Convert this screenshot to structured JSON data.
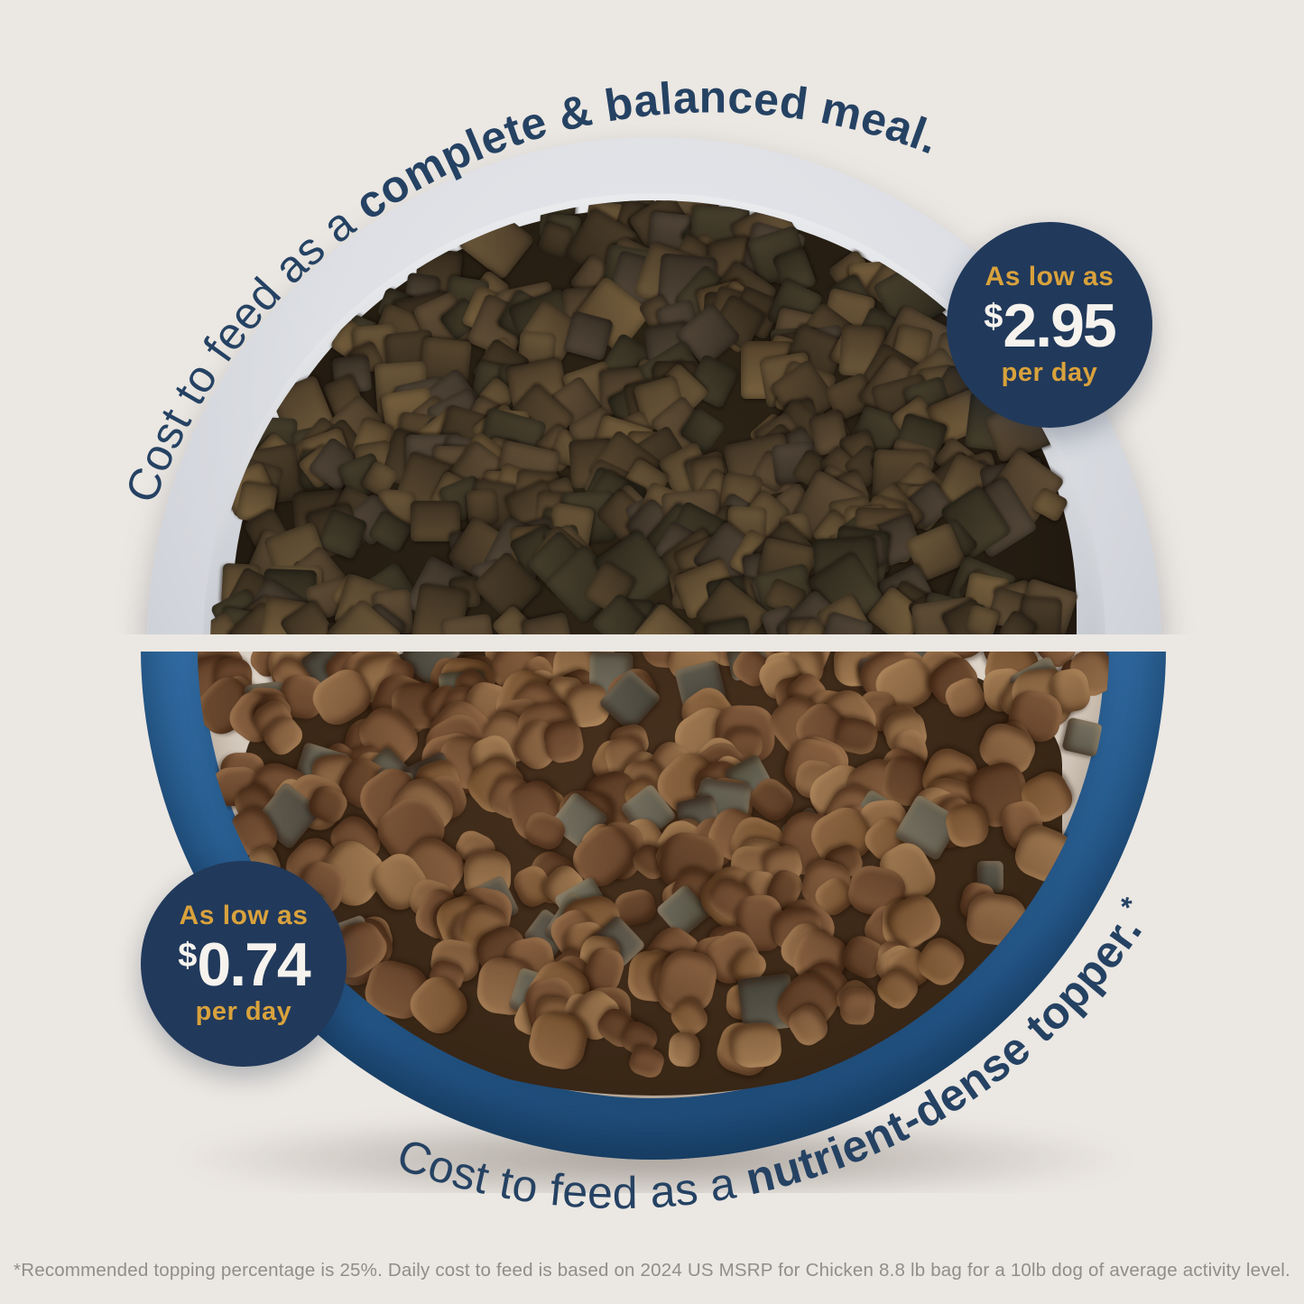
{
  "canvas": {
    "background": "#EBE7E2"
  },
  "top": {
    "arc_regular": "Cost to feed as a ",
    "arc_bold": "complete & balanced meal.",
    "badge_as_low_as": "As low as",
    "badge_currency": "$",
    "badge_amount": "2.95",
    "badge_per_day": "per day"
  },
  "bottom": {
    "arc_regular": "Cost to feed as a ",
    "arc_bold": "nutrient-dense topper.",
    "arc_asterisk": "*",
    "badge_as_low_as": "As low as",
    "badge_currency": "$",
    "badge_amount": "0.74",
    "badge_per_day": "per day"
  },
  "footnote": "*Recommended topping percentage is 25%. Daily cost to feed is based on 2024 US MSRP for Chicken 8.8 lb bag for a 10lb dog of average activity level.",
  "colors": {
    "navy": "#21395B",
    "arc_text": "#254263",
    "gold": "#D9A23C",
    "badge_text": "#F6F3EE",
    "background": "#EBE7E2",
    "footnote_gray": "#918D88",
    "gray_bowl": "#CFD2D8",
    "blue_bowl": "#2F6BA2",
    "cream_interior": "#DBD1C5",
    "freeze_dried_palette": [
      [
        "#5a4931",
        "#3e3222"
      ],
      [
        "#4c3e2b",
        "#352b1d"
      ],
      [
        "#635038",
        "#453827"
      ],
      [
        "#56462f",
        "#6b5639"
      ],
      [
        "#49412f",
        "#2f2a1d"
      ],
      [
        "#6e5a3c",
        "#4a3b28"
      ],
      [
        "#54483a",
        "#3a3126"
      ],
      [
        "#7a6340",
        "#55432c"
      ]
    ],
    "kibble_palette": [
      [
        "#96704c",
        "#7a5638"
      ],
      [
        "#8a6242",
        "#6d4b30"
      ],
      [
        "#a07a52",
        "#83603e"
      ],
      [
        "#7d573a",
        "#63422a"
      ],
      [
        "#8f6846",
        "#74512f"
      ],
      [
        "#6f4c31",
        "#583a24"
      ]
    ],
    "topper_palette": [
      [
        "#6e6a5d",
        "#53503f"
      ],
      [
        "#5e5a4e",
        "#454238"
      ],
      [
        "#787363",
        "#5c584a"
      ],
      [
        "#665f52",
        "#4b463c"
      ]
    ]
  }
}
